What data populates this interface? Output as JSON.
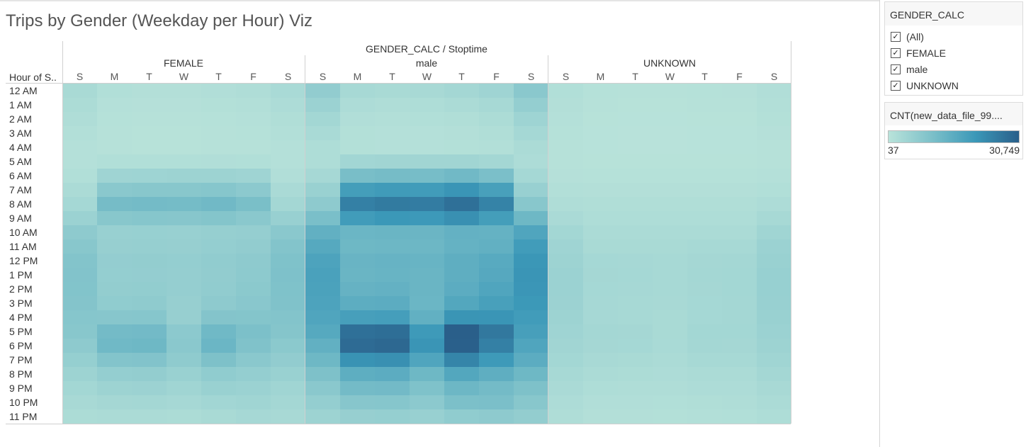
{
  "title": "Trips by Gender (Weekday per Hour) Viz",
  "header": {
    "column_field": "GENDER_CALC / Stoptime",
    "row_header": "Hour of S..",
    "panes": [
      "FEMALE",
      "male",
      "UNKNOWN"
    ],
    "days": [
      "S",
      "M",
      "T",
      "W",
      "T",
      "F",
      "S"
    ]
  },
  "hours": [
    "12 AM",
    "1 AM",
    "2 AM",
    "3 AM",
    "4 AM",
    "5 AM",
    "6 AM",
    "7 AM",
    "8 AM",
    "9 AM",
    "10 AM",
    "11 AM",
    "12 PM",
    "1 PM",
    "2 PM",
    "3 PM",
    "4 PM",
    "5 PM",
    "6 PM",
    "7 PM",
    "8 PM",
    "9 PM",
    "10 PM",
    "11 PM"
  ],
  "filter": {
    "title": "GENDER_CALC",
    "items": [
      {
        "label": "(All)",
        "checked": true
      },
      {
        "label": "FEMALE",
        "checked": true
      },
      {
        "label": "male",
        "checked": true
      },
      {
        "label": "UNKNOWN",
        "checked": true
      }
    ]
  },
  "legend": {
    "title": "CNT(new_data_file_99....",
    "min_label": "37",
    "max_label": "30,749",
    "color_low": "#b9e3da",
    "color_high": "#2a5f8a"
  },
  "chart_data": {
    "type": "heatmap",
    "title": "Trips by Gender (Weekday per Hour) Viz",
    "x_field": "GENDER_CALC / Stoptime",
    "y_field": "Hour of S..",
    "panes": [
      "FEMALE",
      "male",
      "UNKNOWN"
    ],
    "days": [
      "S",
      "M",
      "T",
      "W",
      "T",
      "F",
      "S"
    ],
    "rows": [
      "12 AM",
      "1 AM",
      "2 AM",
      "3 AM",
      "4 AM",
      "5 AM",
      "6 AM",
      "7 AM",
      "8 AM",
      "9 AM",
      "10 AM",
      "11 AM",
      "12 PM",
      "1 PM",
      "2 PM",
      "3 PM",
      "4 PM",
      "5 PM",
      "6 PM",
      "7 PM",
      "8 PM",
      "9 PM",
      "10 PM",
      "11 PM"
    ],
    "color_range": [
      37,
      30749
    ],
    "values": {
      "FEMALE": [
        [
          2500,
          1200,
          1000,
          1000,
          1300,
          1500,
          2400
        ],
        [
          2000,
          800,
          700,
          700,
          900,
          1100,
          1900
        ],
        [
          1500,
          600,
          500,
          500,
          600,
          800,
          1400
        ],
        [
          1100,
          500,
          400,
          400,
          500,
          600,
          1100
        ],
        [
          800,
          500,
          400,
          400,
          500,
          500,
          800
        ],
        [
          800,
          1200,
          1200,
          1200,
          1300,
          1200,
          800
        ],
        [
          1200,
          4000,
          4100,
          4200,
          4300,
          3900,
          1300
        ],
        [
          2100,
          7200,
          7500,
          7400,
          7800,
          6800,
          2300
        ],
        [
          3000,
          10200,
          10500,
          10400,
          11000,
          9600,
          3200
        ],
        [
          4500,
          7500,
          7800,
          7600,
          8000,
          7200,
          5000
        ],
        [
          6500,
          5000,
          5100,
          5000,
          5300,
          5500,
          7200
        ],
        [
          7500,
          5200,
          5300,
          5200,
          5600,
          6000,
          8200
        ],
        [
          8200,
          5700,
          5800,
          5600,
          6100,
          6600,
          8800
        ],
        [
          8400,
          5600,
          5700,
          5500,
          6000,
          6700,
          8900
        ],
        [
          8300,
          5800,
          5900,
          5500,
          6100,
          7000,
          8800
        ],
        [
          8100,
          6200,
          6400,
          5200,
          6500,
          7300,
          8600
        ],
        [
          7800,
          7600,
          7800,
          5200,
          8100,
          8000,
          8200
        ],
        [
          7500,
          10600,
          10800,
          6800,
          11200,
          9200,
          7900
        ],
        [
          6600,
          11200,
          11500,
          7200,
          12000,
          8600,
          7000
        ],
        [
          5400,
          8200,
          8400,
          6400,
          9000,
          7200,
          6000
        ],
        [
          4200,
          5600,
          5800,
          4800,
          6200,
          5600,
          4800
        ],
        [
          3300,
          4300,
          4400,
          3800,
          4800,
          4500,
          3800
        ],
        [
          2600,
          3100,
          3200,
          2900,
          3500,
          3800,
          3200
        ],
        [
          2000,
          2100,
          2200,
          2000,
          2500,
          2900,
          2600
        ]
      ],
      "male": [
        [
          6000,
          2800,
          2500,
          2600,
          3200,
          4000,
          7200
        ],
        [
          4500,
          1900,
          1600,
          1700,
          2100,
          2800,
          5600
        ],
        [
          3300,
          1300,
          1100,
          1200,
          1400,
          2000,
          4100
        ],
        [
          2400,
          900,
          800,
          800,
          1000,
          1400,
          3000
        ],
        [
          1700,
          900,
          800,
          800,
          900,
          1100,
          2100
        ],
        [
          1700,
          3500,
          3600,
          3600,
          3700,
          3200,
          1800
        ],
        [
          2900,
          9800,
          10200,
          10100,
          11000,
          9400,
          3000
        ],
        [
          4800,
          18500,
          19200,
          19000,
          20500,
          17800,
          5000
        ],
        [
          6500,
          24500,
          25500,
          25200,
          27500,
          24000,
          7500
        ],
        [
          9500,
          19000,
          20000,
          19600,
          21500,
          18500,
          11500
        ],
        [
          13500,
          12000,
          12300,
          12100,
          13200,
          13000,
          16500
        ],
        [
          15500,
          11500,
          11800,
          11700,
          13000,
          13500,
          19000
        ],
        [
          17000,
          12400,
          12700,
          12500,
          14100,
          15200,
          20200
        ],
        [
          17500,
          12300,
          12600,
          12300,
          14000,
          15600,
          20500
        ],
        [
          17300,
          12900,
          13200,
          12200,
          14500,
          16500,
          20300
        ],
        [
          17000,
          14300,
          14600,
          12000,
          16000,
          17900,
          19800
        ],
        [
          16500,
          18000,
          18400,
          13500,
          20600,
          20500,
          19000
        ],
        [
          15500,
          27500,
          28000,
          19500,
          30749,
          26000,
          18000
        ],
        [
          13500,
          28500,
          29000,
          20500,
          30500,
          24500,
          16500
        ],
        [
          11500,
          21000,
          21500,
          16500,
          23500,
          19500,
          14500
        ],
        [
          9000,
          14200,
          14500,
          11500,
          16000,
          14000,
          11500
        ],
        [
          7200,
          10500,
          10800,
          8800,
          11800,
          10600,
          9000
        ],
        [
          5600,
          7600,
          7800,
          6800,
          9200,
          9400,
          7400
        ],
        [
          4200,
          5200,
          5400,
          5000,
          6200,
          6600,
          5800
        ]
      ],
      "UNKNOWN": [
        [
          1200,
          600,
          550,
          550,
          650,
          700,
          1300
        ],
        [
          1000,
          450,
          400,
          400,
          450,
          500,
          1100
        ],
        [
          800,
          350,
          300,
          300,
          350,
          400,
          900
        ],
        [
          600,
          300,
          250,
          250,
          300,
          300,
          700
        ],
        [
          450,
          300,
          250,
          250,
          300,
          300,
          500
        ],
        [
          450,
          350,
          350,
          350,
          350,
          350,
          450
        ],
        [
          700,
          600,
          600,
          600,
          600,
          600,
          750
        ],
        [
          1100,
          1000,
          1000,
          1000,
          1000,
          1000,
          1200
        ],
        [
          1600,
          1400,
          1400,
          1400,
          1400,
          1400,
          1800
        ],
        [
          2300,
          1700,
          1700,
          1700,
          1700,
          1700,
          2700
        ],
        [
          3300,
          2100,
          2100,
          2100,
          2100,
          2200,
          3800
        ],
        [
          3900,
          2500,
          2500,
          2500,
          2700,
          2800,
          4500
        ],
        [
          4300,
          3000,
          2900,
          2800,
          3100,
          3200,
          4900
        ],
        [
          4500,
          3100,
          3000,
          2800,
          3200,
          3300,
          5100
        ],
        [
          4500,
          3000,
          2900,
          2700,
          3100,
          3300,
          5100
        ],
        [
          4400,
          2900,
          2800,
          2600,
          3000,
          3200,
          5000
        ],
        [
          4200,
          2900,
          2800,
          2500,
          3000,
          3200,
          4800
        ],
        [
          4000,
          3200,
          3100,
          2500,
          3300,
          3300,
          4600
        ],
        [
          3700,
          3100,
          3000,
          2400,
          3200,
          3100,
          4300
        ],
        [
          3300,
          2600,
          2500,
          2200,
          2700,
          2700,
          3800
        ],
        [
          2800,
          2100,
          2000,
          1800,
          2200,
          2200,
          3200
        ],
        [
          2300,
          1700,
          1600,
          1500,
          1800,
          1800,
          2600
        ],
        [
          1900,
          1300,
          1300,
          1200,
          1400,
          1500,
          2100
        ],
        [
          1500,
          1000,
          1000,
          900,
          1100,
          1200,
          1700
        ]
      ]
    }
  }
}
